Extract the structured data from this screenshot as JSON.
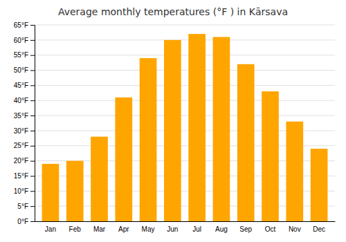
{
  "chart_data": {
    "type": "bar",
    "title": "Average monthly temperatures (°F ) in Kārsava",
    "categories": [
      "Jan",
      "Feb",
      "Mar",
      "Apr",
      "May",
      "Jun",
      "Jul",
      "Aug",
      "Sep",
      "Oct",
      "Nov",
      "Dec"
    ],
    "values": [
      19,
      20,
      28,
      41,
      54,
      60,
      62,
      61,
      52,
      43,
      33,
      24
    ],
    "color": "#FFA500",
    "ylim": [
      0,
      65
    ],
    "yticks": [
      {
        "value": 0,
        "label": "0°F"
      },
      {
        "value": 5,
        "label": "5°F"
      },
      {
        "value": 10,
        "label": "10°F"
      },
      {
        "value": 15,
        "label": "15°F"
      },
      {
        "value": 20,
        "label": "20°F"
      },
      {
        "value": 25,
        "label": "25°F"
      },
      {
        "value": 30,
        "label": "30°F"
      },
      {
        "value": 35,
        "label": "35°F"
      },
      {
        "value": 40,
        "label": "40°F"
      },
      {
        "value": 45,
        "label": "45°F"
      },
      {
        "value": 50,
        "label": "50°F"
      },
      {
        "value": 55,
        "label": "55°F"
      },
      {
        "value": 60,
        "label": "60°F"
      },
      {
        "value": 65,
        "label": "65°F"
      }
    ],
    "grid": true
  }
}
